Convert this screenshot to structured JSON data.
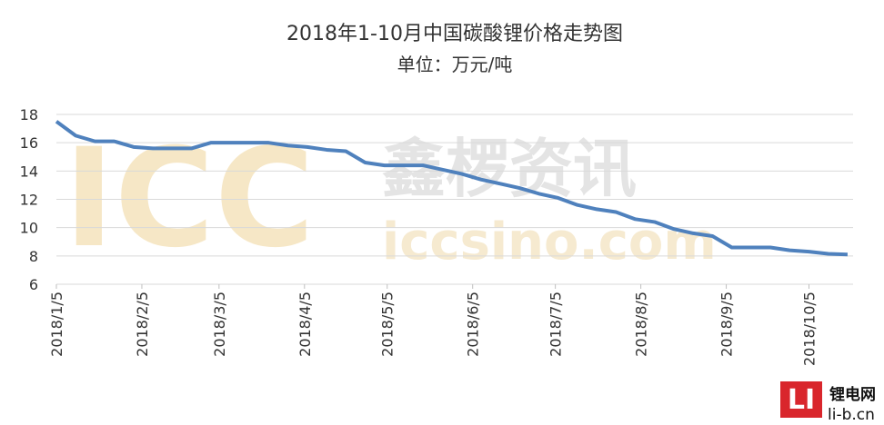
{
  "chart_data": {
    "type": "line",
    "title": "2018年1-10月中国碳酸锂价格走势图",
    "subtitle": "单位：万元/吨",
    "x": [
      "2018/1/5",
      "2018/1/12",
      "2018/1/19",
      "2018/1/26",
      "2018/2/2",
      "2018/2/9",
      "2018/2/16",
      "2018/2/23",
      "2018/3/2",
      "2018/3/9",
      "2018/3/16",
      "2018/3/23",
      "2018/3/30",
      "2018/4/6",
      "2018/4/13",
      "2018/4/20",
      "2018/4/27",
      "2018/5/4",
      "2018/5/11",
      "2018/5/18",
      "2018/5/25",
      "2018/6/1",
      "2018/6/8",
      "2018/6/15",
      "2018/6/22",
      "2018/6/29",
      "2018/7/6",
      "2018/7/13",
      "2018/7/20",
      "2018/7/27",
      "2018/8/3",
      "2018/8/10",
      "2018/8/17",
      "2018/8/24",
      "2018/8/31",
      "2018/9/7",
      "2018/9/14",
      "2018/9/21",
      "2018/9/28",
      "2018/10/5",
      "2018/10/12",
      "2018/10/19"
    ],
    "series": [
      {
        "color": "#4f81bd",
        "values": [
          17.5,
          16.5,
          16.1,
          16.1,
          15.7,
          15.6,
          15.6,
          15.6,
          16.0,
          16.0,
          16.0,
          16.0,
          15.8,
          15.7,
          15.5,
          15.4,
          14.6,
          14.4,
          14.4,
          14.4,
          14.1,
          13.8,
          13.4,
          13.1,
          12.8,
          12.4,
          12.1,
          11.6,
          11.3,
          11.1,
          10.6,
          10.4,
          9.9,
          9.6,
          9.4,
          8.6,
          8.6,
          8.6,
          8.4,
          8.3,
          8.15,
          8.1
        ]
      }
    ],
    "xlim": [
      "2018/1/5",
      "2018/10/21"
    ],
    "xticks": [
      "2018/1/5",
      "2018/2/5",
      "2018/3/5",
      "2018/4/5",
      "2018/5/5",
      "2018/6/5",
      "2018/7/5",
      "2018/8/5",
      "2018/9/5",
      "2018/10/5"
    ],
    "ylim": [
      6,
      18
    ],
    "yticks": [
      6,
      8,
      10,
      12,
      14,
      16,
      18
    ],
    "grid": true,
    "watermark": [
      "ICC",
      "鑫椤资讯",
      "iccsino.com"
    ],
    "logo": [
      "LI",
      "锂电网",
      "li-b.cn"
    ]
  }
}
